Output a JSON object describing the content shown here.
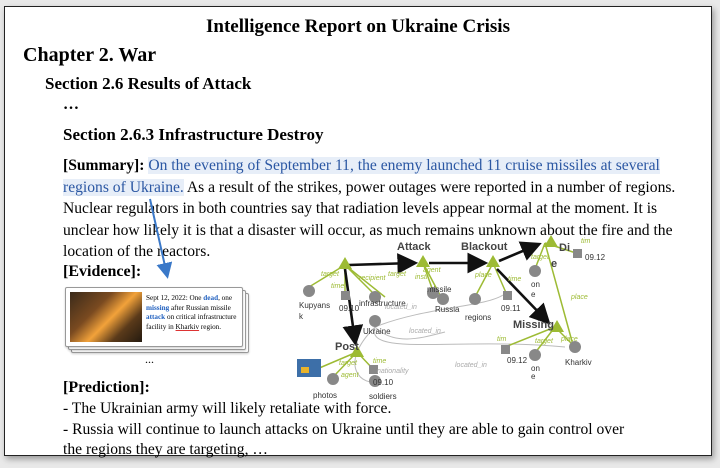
{
  "report": {
    "title": "Intelligence Report on Ukraine Crisis",
    "chapter": "Chapter 2. War",
    "section": "Section 2.6 Results of Attack",
    "ellipsis": "…",
    "subsection": "Section 2.6.3 Infrastructure Destroy"
  },
  "summary": {
    "label": "[Summary]:",
    "highlighted": "On the evening of September 11, the enemy launched 11 cruise missiles at several regions of Ukraine.",
    "rest": "As a result of the strikes, power outages were reported in a number of regions. Nuclear regulators in both countries say that radiation levels appear normal at the moment. It is unclear how likely it is that a disaster will occur, as much remains unknown about the fire and the location of the reactors."
  },
  "evidence": {
    "label": "[Evidence]:",
    "card": {
      "p1": "Sept 12, 2022: One ",
      "dead": "dead",
      "p2": ", one ",
      "missing": "missing",
      "p3": " after Russian missile ",
      "attack": "attack",
      "p4": " on critical infrastructure facility in ",
      "kharkiv": "Kharkiv",
      "p5": " region."
    },
    "more": "..."
  },
  "prediction": {
    "label": "[Prediction]:",
    "line1": "- The Ukrainian army will likely retaliate with force.",
    "line2": "- Russia will continue to launch attacks on Ukraine until they are able to gain control over",
    "line3": "the regions they are targeting, …"
  },
  "graph": {
    "events": [
      "Attack",
      "Blackout",
      "Di e",
      "Missing",
      "Post"
    ],
    "roles": [
      "target",
      "recipient",
      "instrument",
      "agent",
      "place",
      "time",
      "target",
      "place",
      "time",
      "agent"
    ],
    "args": [
      "Kupyans k",
      "09.10",
      "infrastructure",
      "missile",
      "Russia",
      "regions",
      "09.11",
      "on e",
      "09.12",
      "Ukraine",
      "09.12",
      "on e",
      "Kharkiv",
      "photos",
      "09.10",
      "soldiers"
    ],
    "relations": [
      "located_in",
      "located_in",
      "located_in",
      "nationality"
    ],
    "colors": {
      "event": "#9dbb34",
      "arrow": "#111111",
      "role": "#9dbb34",
      "arg": "#888888",
      "relation": "#aaaaaa",
      "evidence_arrow": "#3a78c8"
    }
  }
}
